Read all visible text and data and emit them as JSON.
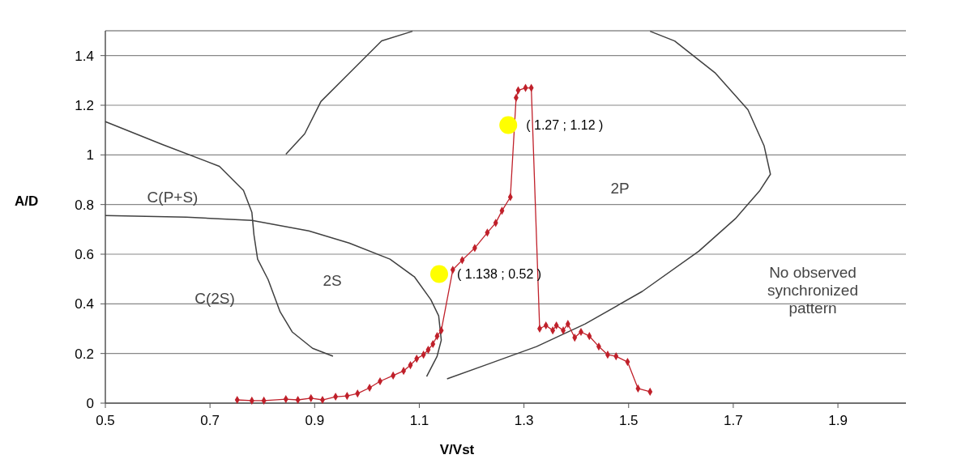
{
  "chart_data": {
    "type": "line",
    "xlabel": "V/Vst",
    "ylabel": "A/D",
    "xlim": [
      0.5,
      2.03
    ],
    "ylim": [
      0,
      1.5
    ],
    "xticks": [
      0.5,
      0.7,
      0.9,
      1.1,
      1.3,
      1.5,
      1.7,
      1.9
    ],
    "yticks": [
      0,
      0.2,
      0.4,
      0.6,
      0.8,
      1,
      1.2,
      1.4
    ],
    "grid": "y",
    "series": [
      {
        "type": "line",
        "color": "#404040",
        "marker": "none",
        "x": [
          0.845,
          0.881,
          0.912,
          0.966,
          1.028,
          1.087
        ],
        "values": [
          1.003,
          1.085,
          1.215,
          1.329,
          1.459,
          1.498
        ]
      },
      {
        "type": "line",
        "color": "#404040",
        "marker": "none",
        "x": [
          0.5,
          0.609,
          0.718,
          0.764,
          0.78,
          0.784,
          0.791,
          0.811,
          0.834,
          0.857,
          0.896,
          0.935
        ],
        "values": [
          1.134,
          1.042,
          0.954,
          0.857,
          0.769,
          0.678,
          0.58,
          0.498,
          0.368,
          0.287,
          0.221,
          0.189
        ]
      },
      {
        "type": "line",
        "color": "#404040",
        "marker": "none",
        "x": [
          0.5,
          0.655,
          0.78,
          0.889,
          0.966,
          1.044,
          1.091,
          1.122,
          1.137,
          1.142,
          1.134,
          1.114
        ],
        "values": [
          0.756,
          0.749,
          0.736,
          0.694,
          0.645,
          0.58,
          0.508,
          0.417,
          0.352,
          0.254,
          0.189,
          0.107
        ]
      },
      {
        "type": "line",
        "color": "#404040",
        "marker": "none",
        "x": [
          1.153,
          1.23,
          1.324,
          1.417,
          1.526,
          1.634,
          1.704,
          1.751,
          1.771,
          1.759,
          1.728,
          1.666,
          1.588,
          1.541
        ],
        "values": [
          0.098,
          0.156,
          0.228,
          0.319,
          0.45,
          0.612,
          0.743,
          0.857,
          0.922,
          1.036,
          1.182,
          1.329,
          1.459,
          1.498
        ]
      },
      {
        "type": "line",
        "color": "#c0202a",
        "marker": "diamond",
        "x": [
          0.752,
          0.78,
          0.803,
          0.845,
          0.868,
          0.893,
          0.915,
          0.94,
          0.962,
          0.982,
          1.005,
          1.025,
          1.05,
          1.07,
          1.083,
          1.095,
          1.108,
          1.117,
          1.126,
          1.134,
          1.142,
          1.164,
          1.182,
          1.206,
          1.23,
          1.246,
          1.258,
          1.274,
          1.285,
          1.289,
          1.303,
          1.314,
          1.33,
          1.342,
          1.355,
          1.362,
          1.375,
          1.384,
          1.397,
          1.409,
          1.425,
          1.443,
          1.46,
          1.476,
          1.498,
          1.518,
          1.541
        ],
        "values": [
          0.013,
          0.01,
          0.01,
          0.016,
          0.013,
          0.02,
          0.013,
          0.026,
          0.029,
          0.039,
          0.062,
          0.088,
          0.111,
          0.13,
          0.153,
          0.179,
          0.195,
          0.215,
          0.238,
          0.27,
          0.293,
          0.537,
          0.576,
          0.625,
          0.687,
          0.726,
          0.775,
          0.83,
          1.23,
          1.26,
          1.27,
          1.27,
          0.3,
          0.313,
          0.293,
          0.313,
          0.293,
          0.319,
          0.264,
          0.287,
          0.27,
          0.228,
          0.195,
          0.189,
          0.166,
          0.059,
          0.046
        ]
      },
      {
        "type": "scatter",
        "color": "#ffff00",
        "marker": "circle",
        "x": [
          1.138,
          1.27
        ],
        "values": [
          0.52,
          1.12
        ],
        "value_labels": [
          "( 1.138 ; 0.52 )",
          "( 1.27 ; 1.12 )"
        ]
      }
    ],
    "annotations": [
      "C(P+S)",
      "C(2S)",
      "2S",
      "2P",
      "No observed\nsynchronized\npattern"
    ]
  }
}
